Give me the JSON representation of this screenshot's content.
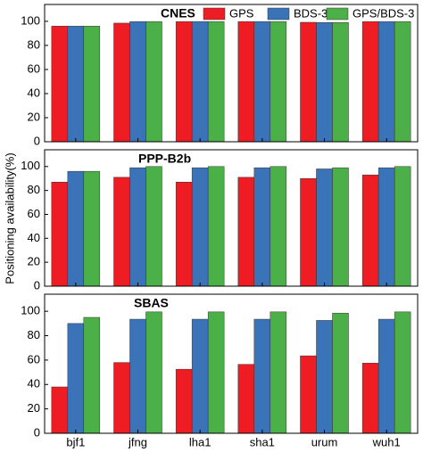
{
  "chart_data": [
    {
      "type": "bar",
      "title": "CNES",
      "legend": "upper right",
      "ylim": [
        0,
        114
      ],
      "yticks": [
        0,
        20,
        40,
        60,
        80,
        100
      ],
      "series": [
        {
          "name": "GPS",
          "color": "#ee1d23",
          "values": [
            96,
            98.5,
            99.8,
            99.8,
            99.2,
            99.8
          ]
        },
        {
          "name": "BDS-3",
          "color": "#3b73b9",
          "values": [
            96,
            99.8,
            99.8,
            99.8,
            99,
            99.8
          ]
        },
        {
          "name": "GPS/BDS-3",
          "color": "#4cb049",
          "values": [
            96,
            99.8,
            99.8,
            99.8,
            99,
            99.8
          ]
        }
      ]
    },
    {
      "type": "bar",
      "title": "PPP-B2b",
      "ylabel": "Positioning availability(%)",
      "ylim": [
        0,
        114
      ],
      "yticks": [
        0,
        20,
        40,
        60,
        80,
        100
      ],
      "series": [
        {
          "color": "#ee1d23",
          "values": [
            87,
            91,
            87,
            91,
            90,
            93
          ]
        },
        {
          "color": "#3b73b9",
          "values": [
            96,
            99,
            99,
            99,
            98,
            99
          ]
        },
        {
          "color": "#4cb049",
          "values": [
            96,
            100,
            100,
            100,
            99,
            100
          ]
        }
      ]
    },
    {
      "type": "bar",
      "title": "SBAS",
      "ylim": [
        0,
        114
      ],
      "yticks": [
        0,
        20,
        40,
        60,
        80,
        100
      ],
      "categories": [
        "bjf1",
        "jfng",
        "lha1",
        "sha1",
        "urum",
        "wuh1"
      ],
      "series": [
        {
          "color": "#ee1d23",
          "values": [
            38,
            58,
            52.5,
            56.5,
            63.5,
            57.5
          ]
        },
        {
          "color": "#3b73b9",
          "values": [
            90,
            93.5,
            93.5,
            93.5,
            92.5,
            93.5
          ]
        },
        {
          "color": "#4cb049",
          "values": [
            95,
            99.5,
            99.5,
            99.5,
            98.5,
            99.5
          ]
        }
      ]
    }
  ]
}
